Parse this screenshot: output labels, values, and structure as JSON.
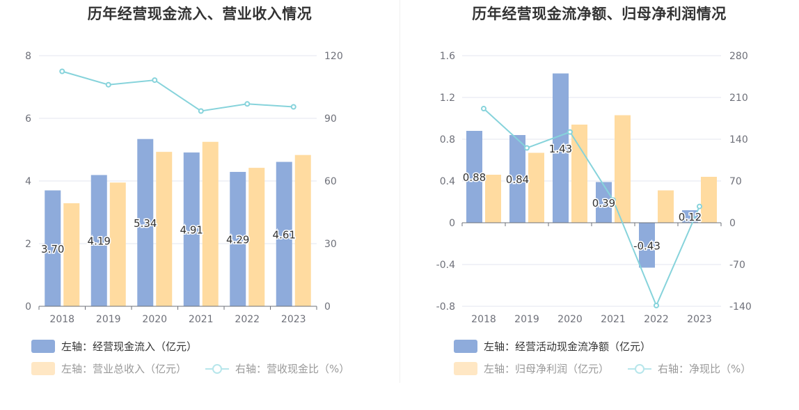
{
  "colors": {
    "bar1": "#8eabdb",
    "bar2": "#ffdba0",
    "line": "#86d3db",
    "grid": "#e3e6ef",
    "axis": "#6e7079"
  },
  "chart_data": [
    {
      "type": "bar",
      "title": "历年经营现金流入、营业收入情况",
      "categories": [
        "2018",
        "2019",
        "2020",
        "2021",
        "2022",
        "2023"
      ],
      "y_left": {
        "range": [
          0,
          8
        ],
        "ticks": [
          "0",
          "2",
          "4",
          "6",
          "8"
        ]
      },
      "y_right": {
        "range": [
          0,
          120
        ],
        "ticks": [
          "0",
          "30",
          "60",
          "90",
          "120"
        ]
      },
      "series": [
        {
          "name": "左轴：经营现金流入（亿元）",
          "kind": "bar",
          "axis": "left",
          "values": [
            3.7,
            4.19,
            5.34,
            4.91,
            4.29,
            4.61
          ],
          "labels": [
            "3.70",
            "4.19",
            "5.34",
            "4.91",
            "4.29",
            "4.61"
          ]
        },
        {
          "name": "左轴：营业总收入（亿元）",
          "kind": "bar",
          "axis": "left",
          "values": [
            3.29,
            3.95,
            4.93,
            5.25,
            4.42,
            4.83
          ]
        },
        {
          "name": "右轴：营收现金比（%）",
          "kind": "line",
          "axis": "right",
          "values": [
            112.5,
            106.1,
            108.3,
            93.5,
            96.9,
            95.5
          ]
        }
      ],
      "legend_position": "bottom"
    },
    {
      "type": "bar",
      "title": "历年经营现金流净额、归母净利润情况",
      "categories": [
        "2018",
        "2019",
        "2020",
        "2021",
        "2022",
        "2023"
      ],
      "y_left": {
        "range": [
          -0.8,
          1.6
        ],
        "ticks": [
          "-0.8",
          "-0.4",
          "0",
          "0.4",
          "0.8",
          "1.2",
          "1.6"
        ]
      },
      "y_right": {
        "range": [
          -140,
          280
        ],
        "ticks": [
          "-140",
          "-70",
          "0",
          "70",
          "140",
          "210",
          "280"
        ]
      },
      "series": [
        {
          "name": "左轴：经营活动现金流净额（亿元）",
          "kind": "bar",
          "axis": "left",
          "values": [
            0.88,
            0.84,
            1.43,
            0.39,
            -0.43,
            0.12
          ],
          "labels": [
            "0.88",
            "0.84",
            "1.43",
            "0.39",
            "-0.43",
            "0.12"
          ]
        },
        {
          "name": "左轴：归母净利润（亿元）",
          "kind": "bar",
          "axis": "left",
          "values": [
            0.46,
            0.67,
            0.94,
            1.03,
            0.31,
            0.44
          ]
        },
        {
          "name": "右轴：净现比（%）",
          "kind": "line",
          "axis": "right",
          "values": [
            191.3,
            125.4,
            152.1,
            37.9,
            -138.7,
            27.3
          ]
        }
      ],
      "legend_position": "bottom"
    }
  ]
}
